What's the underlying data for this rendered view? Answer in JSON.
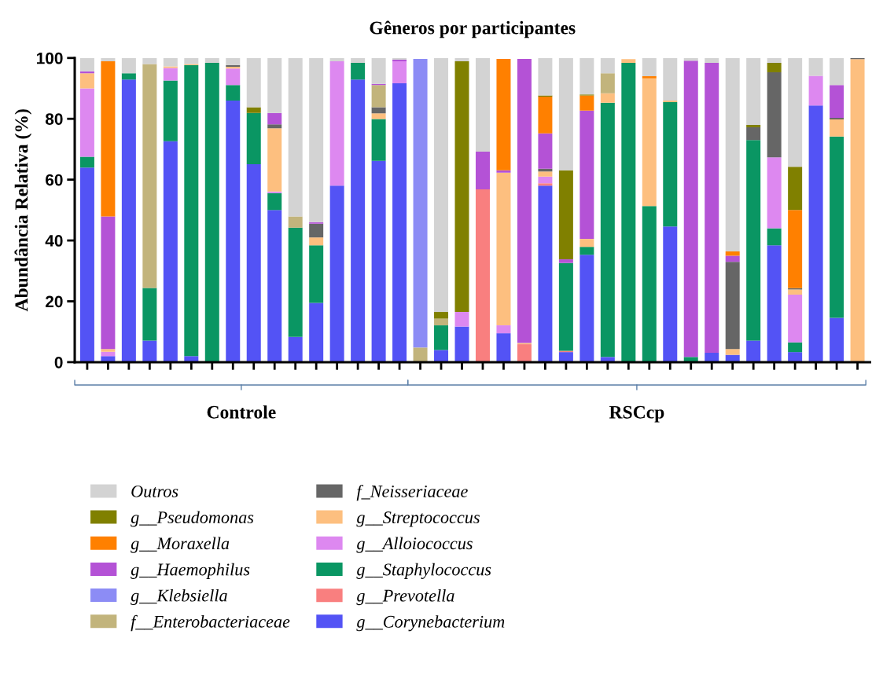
{
  "chart_data": {
    "type": "bar",
    "stacked": true,
    "title": "Gêneros por participantes",
    "ylabel": "Abundância Relativa (%)",
    "categories": [
      null,
      null,
      null,
      null,
      null,
      null,
      null,
      null,
      null,
      null,
      null,
      null,
      null,
      null,
      null,
      null,
      null,
      null,
      null,
      null,
      null,
      null,
      null,
      null,
      null,
      null,
      null,
      null,
      null,
      null,
      null,
      null,
      null,
      null,
      null,
      null,
      null,
      null
    ],
    "ylim": [
      0,
      100
    ],
    "yticks": [
      0,
      20,
      40,
      60,
      80,
      100
    ],
    "grid": false,
    "legend": "bottom",
    "annotations": [
      "Controle",
      "RSCcp"
    ],
    "series": [
      {
        "name": "g__Corynebacterium",
        "color": "#5353f5",
        "values": [
          64,
          2,
          92.9,
          7.1,
          72.6,
          2,
          0,
          86,
          65.1,
          50,
          8.3,
          19.5,
          58,
          92.9,
          66.2,
          91.7,
          0,
          4,
          11.7,
          0,
          9.5,
          0,
          58,
          3.3,
          35.3,
          1.7,
          0,
          0,
          44.6,
          0,
          3.1,
          2.4,
          7.1,
          38.4,
          3.3,
          84.4,
          14.6,
          0
        ]
      },
      {
        "name": "g__Prevotella",
        "color": "#f97f7f",
        "values": [
          0,
          0,
          0,
          0,
          0,
          0,
          0,
          0,
          0,
          0,
          0,
          0,
          0,
          0,
          0,
          0,
          0,
          0,
          0,
          56.8,
          0,
          5.9,
          0.8,
          0.4,
          0,
          0,
          0,
          0,
          0,
          0,
          0,
          0,
          0,
          0,
          0,
          0,
          0,
          0
        ]
      },
      {
        "name": "g__Staphylococcus",
        "color": "#0a9663",
        "values": [
          3.5,
          0,
          2.1,
          17.3,
          20,
          95.6,
          98.4,
          5.1,
          16.8,
          5.6,
          35.9,
          18.9,
          0,
          5.5,
          13.7,
          0,
          0,
          8.1,
          0,
          0,
          0,
          0,
          0,
          28.9,
          2.6,
          83.6,
          98.4,
          51.3,
          40.9,
          1.7,
          0,
          0,
          65.9,
          5.6,
          3.2,
          0,
          59.6,
          0
        ]
      },
      {
        "name": "g__Alloiococcus",
        "color": "#dd88f0",
        "values": [
          22.5,
          1.4,
          0,
          0,
          4.1,
          0,
          0,
          5.4,
          0,
          0.5,
          0,
          0,
          40.9,
          0,
          0,
          7.2,
          0,
          0,
          4.8,
          0,
          2.6,
          0,
          2.2,
          0,
          0,
          0,
          0,
          0,
          0,
          0,
          0,
          0,
          0,
          23.3,
          15.7,
          9.7,
          0,
          0
        ]
      },
      {
        "name": "g__Streptococcus",
        "color": "#fdbf7f",
        "values": [
          5,
          0.9,
          0,
          0,
          0.5,
          0.4,
          0,
          0.6,
          0,
          20.8,
          0,
          2.6,
          0,
          0,
          1.9,
          0,
          0,
          0,
          0,
          0,
          50.2,
          0.4,
          1.7,
          0,
          2.6,
          3.1,
          1.2,
          42,
          0.5,
          0,
          0,
          1.9,
          0,
          0,
          1.7,
          0,
          5.6,
          99.6
        ]
      },
      {
        "name": "f_Neisseriaceae",
        "color": "#666666",
        "values": [
          0,
          0,
          0,
          0,
          0,
          0,
          0,
          0.6,
          0,
          1.3,
          0,
          4.5,
          0,
          0,
          2,
          0,
          0,
          0,
          0,
          0,
          0,
          0,
          0.9,
          0,
          0,
          0,
          0,
          0,
          0,
          0,
          0,
          28.7,
          4.2,
          28,
          0.4,
          0,
          0.5,
          0.4
        ]
      },
      {
        "name": "f__Enterobacteriaceae",
        "color": "#c2b47c",
        "values": [
          0,
          0,
          0,
          73.6,
          0,
          0,
          0,
          0,
          0,
          0,
          3.7,
          0,
          0,
          0,
          7.3,
          0,
          4.8,
          2.2,
          0,
          0,
          0,
          0,
          0,
          0,
          0,
          6.6,
          0,
          0,
          0,
          0,
          0,
          0,
          0,
          0,
          0,
          0,
          0,
          0
        ]
      },
      {
        "name": "g__Klebsiella",
        "color": "#8c8cf5",
        "values": [
          0,
          0,
          0,
          0,
          0,
          0,
          0,
          0,
          0,
          0,
          0,
          0,
          0,
          0,
          0,
          0,
          94.9,
          0,
          0,
          0,
          0,
          0,
          0,
          0,
          0,
          0,
          0,
          0,
          0,
          0,
          0,
          0,
          0,
          0,
          0,
          0,
          0,
          0
        ]
      },
      {
        "name": "g__Haemophilus",
        "color": "#b452d6",
        "values": [
          0.6,
          43.6,
          0,
          0,
          0,
          0,
          0,
          0,
          0,
          3.7,
          0,
          0.5,
          0,
          0,
          0.4,
          0.5,
          0,
          0,
          0,
          12.4,
          0.8,
          93.4,
          11.6,
          1.2,
          42.2,
          0,
          0,
          0,
          0,
          97.4,
          95.3,
          2,
          0,
          0,
          0,
          0,
          10.8,
          0
        ]
      },
      {
        "name": "g__Moraxella",
        "color": "#ff8000",
        "values": [
          0,
          51,
          0,
          0,
          0,
          0,
          0,
          0,
          0,
          0,
          0,
          0,
          0,
          0,
          0,
          0,
          0,
          0,
          0,
          0,
          36.6,
          0,
          12.1,
          0,
          5,
          0,
          0,
          0.7,
          0,
          0,
          0,
          1.4,
          0,
          0,
          25.7,
          0,
          0,
          0
        ]
      },
      {
        "name": "g__Pseudomonas",
        "color": "#808000",
        "values": [
          0,
          0,
          0,
          0,
          0,
          0,
          0,
          0,
          1.9,
          0,
          0,
          0,
          0,
          0,
          0,
          0,
          0,
          2.2,
          82.4,
          0,
          0,
          0,
          0.4,
          29.3,
          0.3,
          0,
          0,
          0,
          0,
          0,
          0,
          0,
          0.8,
          3.1,
          14.2,
          0,
          0,
          0
        ]
      },
      {
        "name": "Outros",
        "color": "#d3d3d3",
        "values": [
          4.4,
          1.1,
          5,
          2,
          2.8,
          2,
          1.6,
          2.3,
          16.2,
          18.1,
          52.1,
          54,
          1.1,
          1.6,
          8.5,
          0.6,
          null,
          83.5,
          1.1,
          30.8,
          null,
          null,
          12.3,
          36.9,
          12,
          5,
          null,
          6,
          14,
          0.9,
          1.6,
          63.6,
          22,
          1.6,
          35.8,
          5.9,
          8.9,
          0
        ]
      }
    ]
  }
}
